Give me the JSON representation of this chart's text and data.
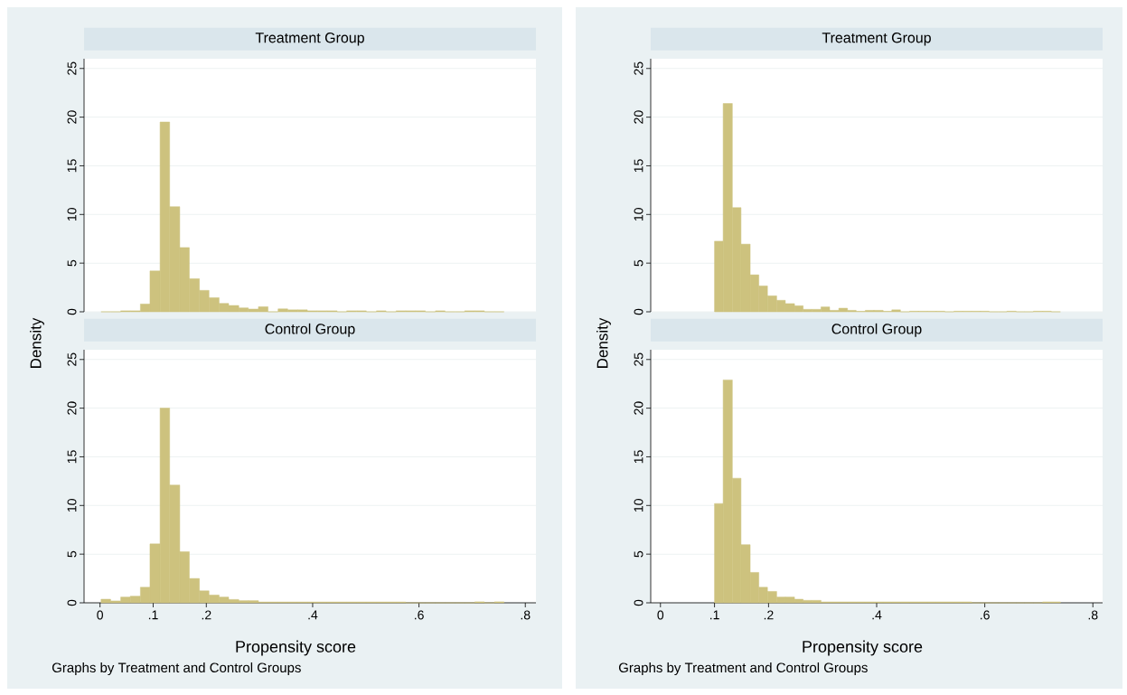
{
  "chart_data": [
    {
      "type": "histogram",
      "title": "Treatment Group",
      "ylabel": "Density",
      "color": "#cdc27e",
      "grid": "y",
      "tick_labels": "y",
      "xlim": [
        -0.03,
        0.82
      ],
      "ylim": [
        0,
        26
      ],
      "yticks": [
        0,
        5,
        10,
        15,
        20,
        25
      ],
      "bins": [
        0.002,
        0.02,
        0.039,
        0.057,
        0.076,
        0.094,
        0.113,
        0.131,
        0.15,
        0.168,
        0.187,
        0.205,
        0.224,
        0.242,
        0.261,
        0.279,
        0.298,
        0.316,
        0.335,
        0.353,
        0.372,
        0.39,
        0.409,
        0.427,
        0.446,
        0.464,
        0.483,
        0.501,
        0.52,
        0.538,
        0.557,
        0.575,
        0.594,
        0.612,
        0.631,
        0.649,
        0.668,
        0.686,
        0.705,
        0.723,
        0.742,
        0.76
      ],
      "values": [
        0,
        0,
        0.1,
        0.1,
        0.8,
        4.2,
        19.5,
        10.8,
        6.6,
        3.4,
        2.2,
        1.45,
        0.86,
        0.65,
        0.4,
        0.28,
        0.52,
        0,
        0.3,
        0.2,
        0.2,
        0.1,
        0.1,
        0.1,
        0,
        0.1,
        0.1,
        0,
        0.1,
        0,
        0.1,
        0.1,
        0.1,
        0,
        0.1,
        0,
        0,
        0.1,
        0.1,
        0,
        0
      ]
    },
    {
      "type": "histogram",
      "title": "Treatment Group",
      "ylabel": "Density",
      "color": "#cdc27e",
      "grid": "y",
      "tick_labels": "y",
      "xlim": [
        -0.018,
        0.818
      ],
      "ylim": [
        0,
        26
      ],
      "yticks": [
        0,
        5,
        10,
        15,
        20,
        25
      ],
      "bins": [
        0.1,
        0.116,
        0.133,
        0.149,
        0.166,
        0.182,
        0.198,
        0.215,
        0.231,
        0.248,
        0.264,
        0.28,
        0.297,
        0.313,
        0.33,
        0.346,
        0.362,
        0.379,
        0.395,
        0.412,
        0.428,
        0.444,
        0.461,
        0.477,
        0.494,
        0.51,
        0.526,
        0.543,
        0.559,
        0.576,
        0.592,
        0.608,
        0.625,
        0.641,
        0.658,
        0.674,
        0.69,
        0.707,
        0.723,
        0.74
      ],
      "values": [
        7.25,
        21.4,
        10.7,
        6.95,
        3.8,
        2.66,
        1.64,
        1.18,
        0.84,
        0.62,
        0.25,
        0.25,
        0.5,
        0.15,
        0.37,
        0.15,
        0.05,
        0.15,
        0.15,
        0.05,
        0.2,
        0,
        0.06,
        0.06,
        0.06,
        0.06,
        0,
        0.06,
        0.06,
        0.06,
        0.06,
        0,
        0,
        0.06,
        0,
        0,
        0.06,
        0.06,
        0
      ]
    },
    {
      "type": "histogram",
      "title": "Control Group",
      "xlabel": "Propensity score",
      "annotations": [
        "Graphs by Treatment and Control Groups"
      ],
      "color": "#cdc27e",
      "grid": "y",
      "xlim": [
        -0.03,
        0.82
      ],
      "ylim": [
        0,
        26
      ],
      "yticks": [
        0,
        5,
        10,
        15,
        20,
        25
      ],
      "xticks": [
        0,
        {
          "value": 0.1,
          "label": ".1"
        },
        {
          "value": 0.2,
          "label": ".2"
        },
        {
          "value": 0.4,
          "label": ".4"
        },
        {
          "value": 0.6,
          "label": ".6"
        },
        {
          "value": 0.8,
          "label": ".8"
        }
      ],
      "bins": [
        0.002,
        0.02,
        0.039,
        0.057,
        0.076,
        0.094,
        0.113,
        0.131,
        0.15,
        0.168,
        0.187,
        0.205,
        0.224,
        0.242,
        0.261,
        0.279,
        0.298,
        0.316,
        0.335,
        0.353,
        0.372,
        0.39,
        0.409,
        0.427,
        0.446,
        0.464,
        0.483,
        0.501,
        0.52,
        0.538,
        0.557,
        0.575,
        0.594,
        0.612,
        0.631,
        0.649,
        0.668,
        0.686,
        0.705,
        0.723,
        0.742,
        0.76
      ],
      "values": [
        0.37,
        0.19,
        0.59,
        0.68,
        1.6,
        6.05,
        20,
        12.1,
        5.25,
        2.5,
        1.23,
        0.8,
        0.59,
        0.34,
        0.22,
        0.22,
        0.08,
        0.08,
        0.08,
        0.08,
        0.08,
        0.08,
        0.08,
        0.08,
        0.08,
        0.08,
        0.08,
        0.08,
        0.08,
        0.08,
        0.08,
        0,
        0,
        0,
        0,
        0,
        0,
        0,
        0.1,
        0,
        0.1
      ]
    },
    {
      "type": "histogram",
      "title": "Control Group",
      "xlabel": "Propensity score",
      "annotations": [
        "Graphs by Treatment and Control Groups"
      ],
      "color": "#cdc27e",
      "grid": "y",
      "xlim": [
        -0.018,
        0.818
      ],
      "ylim": [
        0,
        26
      ],
      "yticks": [
        0,
        5,
        10,
        15,
        20,
        25
      ],
      "xticks": [
        0,
        {
          "value": 0.1,
          "label": ".1"
        },
        {
          "value": 0.2,
          "label": ".2"
        },
        {
          "value": 0.4,
          "label": ".4"
        },
        {
          "value": 0.6,
          "label": ".6"
        },
        {
          "value": 0.8,
          "label": ".8"
        }
      ],
      "bins": [
        0.1,
        0.116,
        0.133,
        0.149,
        0.166,
        0.182,
        0.198,
        0.215,
        0.231,
        0.248,
        0.264,
        0.28,
        0.297,
        0.313,
        0.33,
        0.346,
        0.362,
        0.379,
        0.395,
        0.412,
        0.428,
        0.444,
        0.461,
        0.477,
        0.494,
        0.51,
        0.526,
        0.543,
        0.559,
        0.576,
        0.592,
        0.608,
        0.625,
        0.641,
        0.658,
        0.674,
        0.69,
        0.707,
        0.723,
        0.74
      ],
      "values": [
        10.2,
        22.9,
        12.8,
        5.97,
        3.12,
        1.6,
        1.17,
        0.59,
        0.59,
        0.37,
        0.25,
        0.25,
        0.09,
        0.09,
        0.09,
        0.09,
        0.09,
        0.09,
        0.09,
        0.09,
        0.09,
        0.09,
        0.09,
        0.09,
        0.09,
        0.09,
        0.09,
        0.09,
        0.09,
        0,
        0,
        0,
        0,
        0,
        0,
        0,
        0,
        0.09,
        0.09
      ]
    }
  ]
}
